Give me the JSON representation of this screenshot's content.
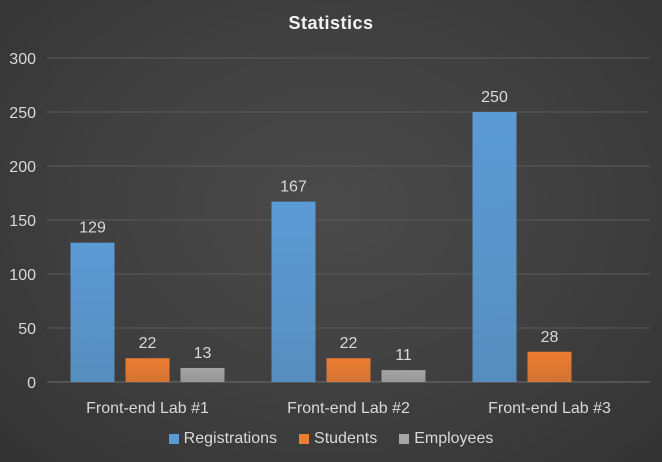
{
  "chart_data": {
    "type": "bar",
    "title": "Statistics",
    "categories": [
      "Front-end Lab #1",
      "Front-end Lab #2",
      "Front-end Lab #3"
    ],
    "series": [
      {
        "name": "Registrations",
        "color": "#5b9bd5",
        "values": [
          129,
          167,
          250
        ]
      },
      {
        "name": "Students",
        "color": "#ed7d31",
        "values": [
          22,
          22,
          28
        ]
      },
      {
        "name": "Employees",
        "color": "#a5a5a5",
        "values": [
          13,
          11,
          null
        ]
      }
    ],
    "ylim": [
      0,
      300
    ],
    "yticks": [
      0,
      50,
      100,
      150,
      200,
      250,
      300
    ],
    "grid": true,
    "legend_position": "bottom"
  }
}
